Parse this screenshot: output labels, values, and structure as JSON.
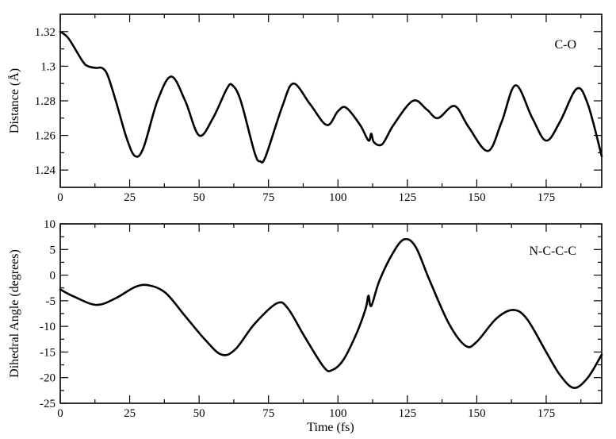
{
  "chart_data": [
    {
      "type": "line",
      "title": "",
      "annotation": "C-O",
      "xlabel": "",
      "ylabel": "Distance (Å)",
      "xlim": [
        0,
        195
      ],
      "ylim": [
        1.23,
        1.33
      ],
      "x_ticks": [
        0,
        25,
        50,
        75,
        100,
        125,
        150,
        175
      ],
      "x_tick_labels": [
        "0",
        "25",
        "50",
        "75",
        "100",
        "125",
        "150",
        "175"
      ],
      "y_ticks": [
        1.24,
        1.26,
        1.28,
        1.3,
        1.32
      ],
      "y_tick_labels": [
        "1.24",
        "1.26",
        "1.28",
        "1.3",
        "1.32"
      ],
      "grid": false,
      "line_color": "#000000",
      "series": [
        {
          "x": [
            0,
            3,
            8,
            10,
            13,
            15,
            17,
            20,
            24,
            27,
            30,
            35,
            40,
            45,
            50,
            55,
            60,
            62,
            65,
            70,
            72,
            74,
            80,
            84,
            90,
            96,
            100,
            103,
            108,
            111,
            112,
            113,
            116,
            120,
            127,
            132,
            136,
            142,
            147,
            154,
            159,
            164,
            170,
            175,
            180,
            186,
            190,
            195
          ],
          "y": [
            1.32,
            1.316,
            1.303,
            1.3,
            1.299,
            1.299,
            1.295,
            1.28,
            1.258,
            1.248,
            1.253,
            1.28,
            1.294,
            1.28,
            1.26,
            1.27,
            1.287,
            1.289,
            1.28,
            1.25,
            1.245,
            1.248,
            1.277,
            1.29,
            1.278,
            1.266,
            1.274,
            1.276,
            1.266,
            1.257,
            1.261,
            1.256,
            1.255,
            1.266,
            1.28,
            1.275,
            1.27,
            1.277,
            1.265,
            1.251,
            1.268,
            1.289,
            1.27,
            1.257,
            1.268,
            1.287,
            1.278,
            1.248
          ]
        }
      ]
    },
    {
      "type": "line",
      "title": "",
      "annotation": "N-C-C-C",
      "xlabel": "Time (fs)",
      "ylabel": "Dihedral Angle (degrees)",
      "xlim": [
        0,
        195
      ],
      "ylim": [
        -25,
        10
      ],
      "x_ticks": [
        0,
        25,
        50,
        75,
        100,
        125,
        150,
        175
      ],
      "x_tick_labels": [
        "0",
        "25",
        "50",
        "75",
        "100",
        "125",
        "150",
        "175"
      ],
      "y_ticks": [
        -25,
        -20,
        -15,
        -10,
        -5,
        0,
        5,
        10
      ],
      "y_tick_labels": [
        "-25",
        "-20",
        "-15",
        "-10",
        "-5",
        "0",
        "5",
        "10"
      ],
      "grid": false,
      "line_color": "#000000",
      "series": [
        {
          "x": [
            0,
            5,
            13,
            20,
            27,
            32,
            38,
            45,
            52,
            58,
            63,
            70,
            78,
            82,
            88,
            95,
            98,
            102,
            107,
            110,
            111,
            112,
            115,
            120,
            124,
            128,
            133,
            140,
            146,
            150,
            157,
            163,
            168,
            175,
            180,
            185,
            190,
            195
          ],
          "y": [
            -2.8,
            -4.2,
            -5.8,
            -4.5,
            -2.3,
            -2.0,
            -3.5,
            -8.0,
            -12.5,
            -15.5,
            -14.5,
            -9.5,
            -5.5,
            -6.5,
            -12.0,
            -18.0,
            -18.5,
            -16.5,
            -11.0,
            -6.5,
            -4.0,
            -6.0,
            -1.0,
            4.5,
            7.0,
            5.5,
            -1.0,
            -9.5,
            -13.8,
            -13.0,
            -8.5,
            -6.8,
            -8.5,
            -15.0,
            -19.5,
            -22.0,
            -20.0,
            -15.5
          ]
        }
      ]
    }
  ]
}
